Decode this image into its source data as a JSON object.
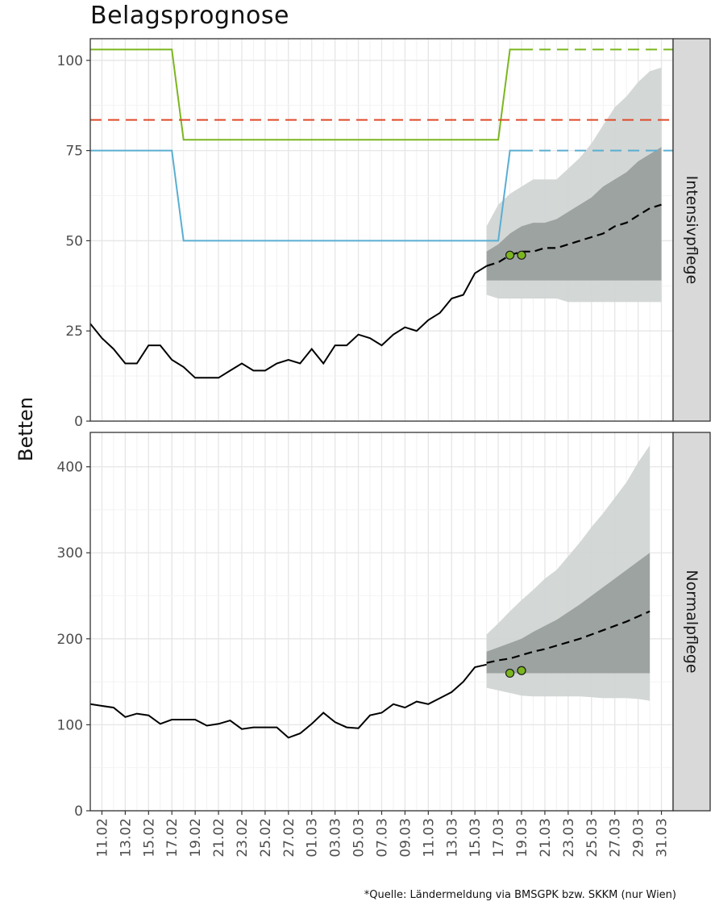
{
  "title": "Belagsprognose",
  "ylabel": "Betten",
  "source_note": "*Quelle: Ländermeldung via BMSGPK bzw. SKKM (nur Wien)",
  "colors": {
    "observed": "#000000",
    "forecast": "#000000",
    "band_outer": "#d1d5d4",
    "band_inner": "#9aa09e",
    "green_line": "#7bb61f",
    "blue_line": "#5aaed1",
    "red_line": "#e04a2a",
    "dots": "#7bb61f"
  },
  "chart_data": {
    "type": "line",
    "x_tick_labels": [
      "11.02",
      "13.02",
      "15.02",
      "17.02",
      "19.02",
      "21.02",
      "23.02",
      "25.02",
      "27.02",
      "01.03",
      "03.03",
      "05.03",
      "07.03",
      "09.03",
      "11.03",
      "13.03",
      "15.03",
      "17.03",
      "19.03",
      "21.03",
      "23.03",
      "25.03",
      "27.03",
      "29.03",
      "31.03"
    ],
    "facets": [
      {
        "name": "Intensivpflege",
        "ylim": [
          0,
          106
        ],
        "yticks": [
          0,
          25,
          50,
          75,
          100
        ],
        "observed": [
          27,
          23,
          20,
          16,
          16,
          21,
          21,
          17,
          15,
          12,
          12,
          12,
          14,
          16,
          14,
          14,
          16,
          17,
          16,
          20,
          16,
          21,
          21,
          24,
          23,
          21,
          24,
          26,
          25,
          28,
          30,
          34,
          35,
          41,
          43
        ],
        "forecast_median": [
          43,
          44,
          46,
          47,
          47,
          48,
          48,
          49,
          50,
          51,
          52,
          54,
          55,
          57,
          59,
          60
        ],
        "band_inner_low": [
          39,
          39,
          39,
          39,
          39,
          39,
          39,
          39,
          39,
          39,
          39,
          39,
          39,
          39,
          39,
          39
        ],
        "band_inner_high": [
          47,
          49,
          52,
          54,
          55,
          55,
          56,
          58,
          60,
          62,
          65,
          67,
          69,
          72,
          74,
          76
        ],
        "band_outer_low": [
          35,
          34,
          34,
          34,
          34,
          34,
          34,
          33,
          33,
          33,
          33,
          33,
          33,
          33,
          33,
          33
        ],
        "band_outer_high": [
          54,
          60,
          63,
          65,
          67,
          67,
          67,
          70,
          73,
          77,
          82,
          87,
          90,
          94,
          97,
          98
        ],
        "dots": [
          {
            "x": "17.03",
            "y": 46
          },
          {
            "x": "18.03",
            "y": 46
          }
        ],
        "green_capacity": [
          103,
          103,
          103,
          103,
          103,
          103,
          103,
          103,
          78,
          78,
          78,
          78,
          78,
          78,
          78,
          78,
          78,
          78,
          78,
          78,
          78,
          78,
          78,
          78,
          78,
          78,
          78,
          78,
          78,
          78,
          78,
          78,
          78,
          78,
          78,
          78,
          103,
          103,
          103,
          103,
          103,
          103,
          103,
          103,
          103,
          103,
          103,
          103,
          103,
          103,
          103
        ],
        "blue_capacity": [
          75,
          75,
          75,
          75,
          75,
          75,
          75,
          75,
          50,
          50,
          50,
          50,
          50,
          50,
          50,
          50,
          50,
          50,
          50,
          50,
          50,
          50,
          50,
          50,
          50,
          50,
          50,
          50,
          50,
          50,
          50,
          50,
          50,
          50,
          50,
          50,
          75,
          75,
          75,
          75,
          75,
          75,
          75,
          75,
          75,
          75,
          75,
          75,
          75,
          75,
          75
        ],
        "red_threshold": 83.5
      },
      {
        "name": "Normalpflege",
        "ylim": [
          0,
          440
        ],
        "yticks": [
          0,
          100,
          200,
          300,
          400
        ],
        "observed": [
          124,
          122,
          120,
          109,
          113,
          111,
          101,
          106,
          106,
          106,
          99,
          101,
          105,
          95,
          97,
          97,
          97,
          85,
          90,
          101,
          114,
          103,
          97,
          96,
          111,
          114,
          124,
          120,
          127,
          124,
          131,
          138,
          150,
          167,
          170
        ],
        "forecast_median": [
          172,
          175,
          177,
          181,
          185,
          188,
          192,
          196,
          200,
          205,
          210,
          215,
          220,
          226,
          232
        ],
        "band_inner_low": [
          160,
          160,
          160,
          160,
          160,
          160,
          160,
          160,
          160,
          160,
          160,
          160,
          160,
          160,
          160
        ],
        "band_inner_high": [
          185,
          190,
          195,
          200,
          208,
          215,
          222,
          231,
          240,
          250,
          260,
          270,
          280,
          290,
          300
        ],
        "band_outer_low": [
          143,
          140,
          137,
          134,
          133,
          133,
          133,
          133,
          133,
          132,
          131,
          131,
          131,
          130,
          128
        ],
        "band_outer_high": [
          205,
          218,
          232,
          245,
          257,
          270,
          280,
          296,
          312,
          330,
          346,
          364,
          382,
          405,
          425
        ],
        "dots": [
          {
            "x": "17.03",
            "y": 160
          },
          {
            "x": "18.03",
            "y": 163
          }
        ]
      }
    ]
  }
}
